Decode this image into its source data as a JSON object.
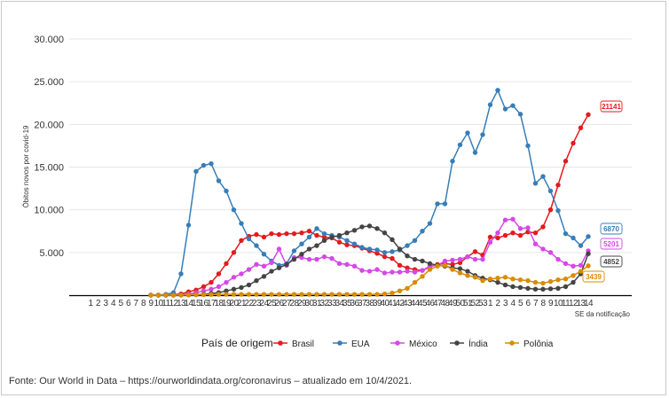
{
  "chart_data": {
    "type": "line",
    "ylabel": "Óbitos novos por covid-19",
    "xlabel": "SE da notificação",
    "ylim": [
      0,
      30000
    ],
    "yticks": [
      {
        "v": 5000,
        "label": "5.000"
      },
      {
        "v": 10000,
        "label": "10.000"
      },
      {
        "v": 15000,
        "label": "15.000"
      },
      {
        "v": 20000,
        "label": "20.000"
      },
      {
        "v": 25000,
        "label": "25.000"
      },
      {
        "v": 30000,
        "label": "30.000"
      }
    ],
    "x_labels": [
      "1",
      "2",
      "3",
      "4",
      "5",
      "6",
      "7",
      "8",
      "9",
      "10",
      "11",
      "12",
      "13",
      "14",
      "15",
      "16",
      "17",
      "18",
      "19",
      "20",
      "21",
      "22",
      "23",
      "24",
      "25",
      "26",
      "27",
      "28",
      "29",
      "30",
      "31",
      "32",
      "33",
      "34",
      "35",
      "36",
      "37",
      "38",
      "39",
      "40",
      "41",
      "42",
      "43",
      "44",
      "45",
      "46",
      "47",
      "48",
      "49",
      "50",
      "51",
      "52",
      "53",
      "1",
      "2",
      "3",
      "4",
      "5",
      "6",
      "7",
      "8",
      "9",
      "10",
      "11",
      "12",
      "13",
      "14"
    ],
    "grid": true,
    "legend": {
      "title": "País de origem",
      "position": "bottom"
    },
    "series": [
      {
        "name": "Brasil",
        "color": "#e41a1c",
        "end_label": "21141",
        "values": [
          null,
          null,
          null,
          null,
          null,
          null,
          null,
          null,
          0,
          0,
          0,
          60,
          150,
          400,
          600,
          1000,
          1500,
          2500,
          3700,
          5000,
          6400,
          6900,
          7100,
          6800,
          7200,
          7100,
          7200,
          7200,
          7300,
          7500,
          7000,
          6800,
          6700,
          6200,
          5900,
          5800,
          5500,
          5200,
          4900,
          4500,
          4300,
          3500,
          3200,
          3000,
          2900,
          3300,
          3600,
          3700,
          3600,
          3800,
          4500,
          5100,
          4700,
          6800,
          6700,
          7000,
          7300,
          7000,
          7400,
          7300,
          8000,
          10000,
          12900,
          15700,
          17800,
          19600,
          21141
        ]
      },
      {
        "name": "EUA",
        "color": "#377eb8",
        "end_label": "6870",
        "values": [
          null,
          null,
          null,
          null,
          null,
          null,
          null,
          null,
          0,
          0,
          100,
          300,
          2500,
          8200,
          14500,
          15200,
          15400,
          13400,
          12200,
          10000,
          8400,
          6600,
          5800,
          4800,
          4000,
          3500,
          3700,
          5200,
          6000,
          6800,
          7800,
          7200,
          7000,
          6800,
          6400,
          6000,
          5600,
          5400,
          5300,
          5000,
          5100,
          5300,
          5800,
          6400,
          7500,
          8400,
          10700,
          10700,
          15700,
          17600,
          19000,
          16700,
          18800,
          22300,
          24000,
          21800,
          22200,
          21200,
          17500,
          13100,
          13900,
          12200,
          9900,
          7200,
          6700,
          5800,
          6870
        ]
      },
      {
        "name": "México",
        "color": "#d548e8",
        "end_label": "5201",
        "values": [
          null,
          null,
          null,
          null,
          null,
          null,
          null,
          null,
          0,
          0,
          0,
          10,
          50,
          150,
          300,
          500,
          700,
          1000,
          1500,
          2100,
          2500,
          3000,
          3600,
          3400,
          3800,
          5400,
          3500,
          4400,
          4400,
          4200,
          4200,
          4500,
          4300,
          3700,
          3600,
          3400,
          2900,
          2800,
          3000,
          2600,
          2700,
          2700,
          2800,
          2700,
          2900,
          3400,
          3500,
          4000,
          4100,
          4200,
          4500,
          4200,
          4200,
          6200,
          7300,
          8800,
          8900,
          7800,
          7900,
          6000,
          5400,
          5000,
          4200,
          3700,
          3400,
          3500,
          5201
        ]
      },
      {
        "name": "Índia",
        "color": "#444444",
        "end_label": "4852",
        "values": [
          null,
          null,
          null,
          null,
          null,
          null,
          null,
          null,
          0,
          0,
          0,
          0,
          10,
          30,
          60,
          100,
          200,
          300,
          500,
          700,
          900,
          1200,
          1700,
          2200,
          2800,
          3200,
          3600,
          4200,
          4800,
          5400,
          5800,
          6400,
          6800,
          7000,
          7300,
          7600,
          8000,
          8100,
          7800,
          7300,
          6500,
          5400,
          4600,
          4200,
          4000,
          3700,
          3500,
          3400,
          3200,
          3100,
          2800,
          2300,
          2000,
          1800,
          1500,
          1200,
          1000,
          900,
          800,
          700,
          700,
          750,
          800,
          1000,
          1500,
          2500,
          4852
        ]
      },
      {
        "name": "Polônia",
        "color": "#d98c00",
        "end_label": "3439",
        "values": [
          null,
          null,
          null,
          null,
          null,
          null,
          null,
          null,
          0,
          0,
          0,
          0,
          10,
          20,
          40,
          60,
          80,
          90,
          100,
          100,
          100,
          100,
          100,
          100,
          100,
          100,
          100,
          100,
          100,
          100,
          100,
          100,
          100,
          100,
          100,
          100,
          100,
          100,
          100,
          150,
          250,
          500,
          800,
          1500,
          2200,
          3000,
          3400,
          3500,
          3000,
          2600,
          2300,
          2100,
          1700,
          1900,
          2000,
          2100,
          1900,
          1800,
          1700,
          1500,
          1400,
          1600,
          1800,
          1900,
          2300,
          2800,
          3439
        ]
      }
    ]
  },
  "footer": {
    "source": "Fonte: Our World in Data – https://ourworldindata.org/coronavirus – atualizado em 10/4/2021."
  }
}
